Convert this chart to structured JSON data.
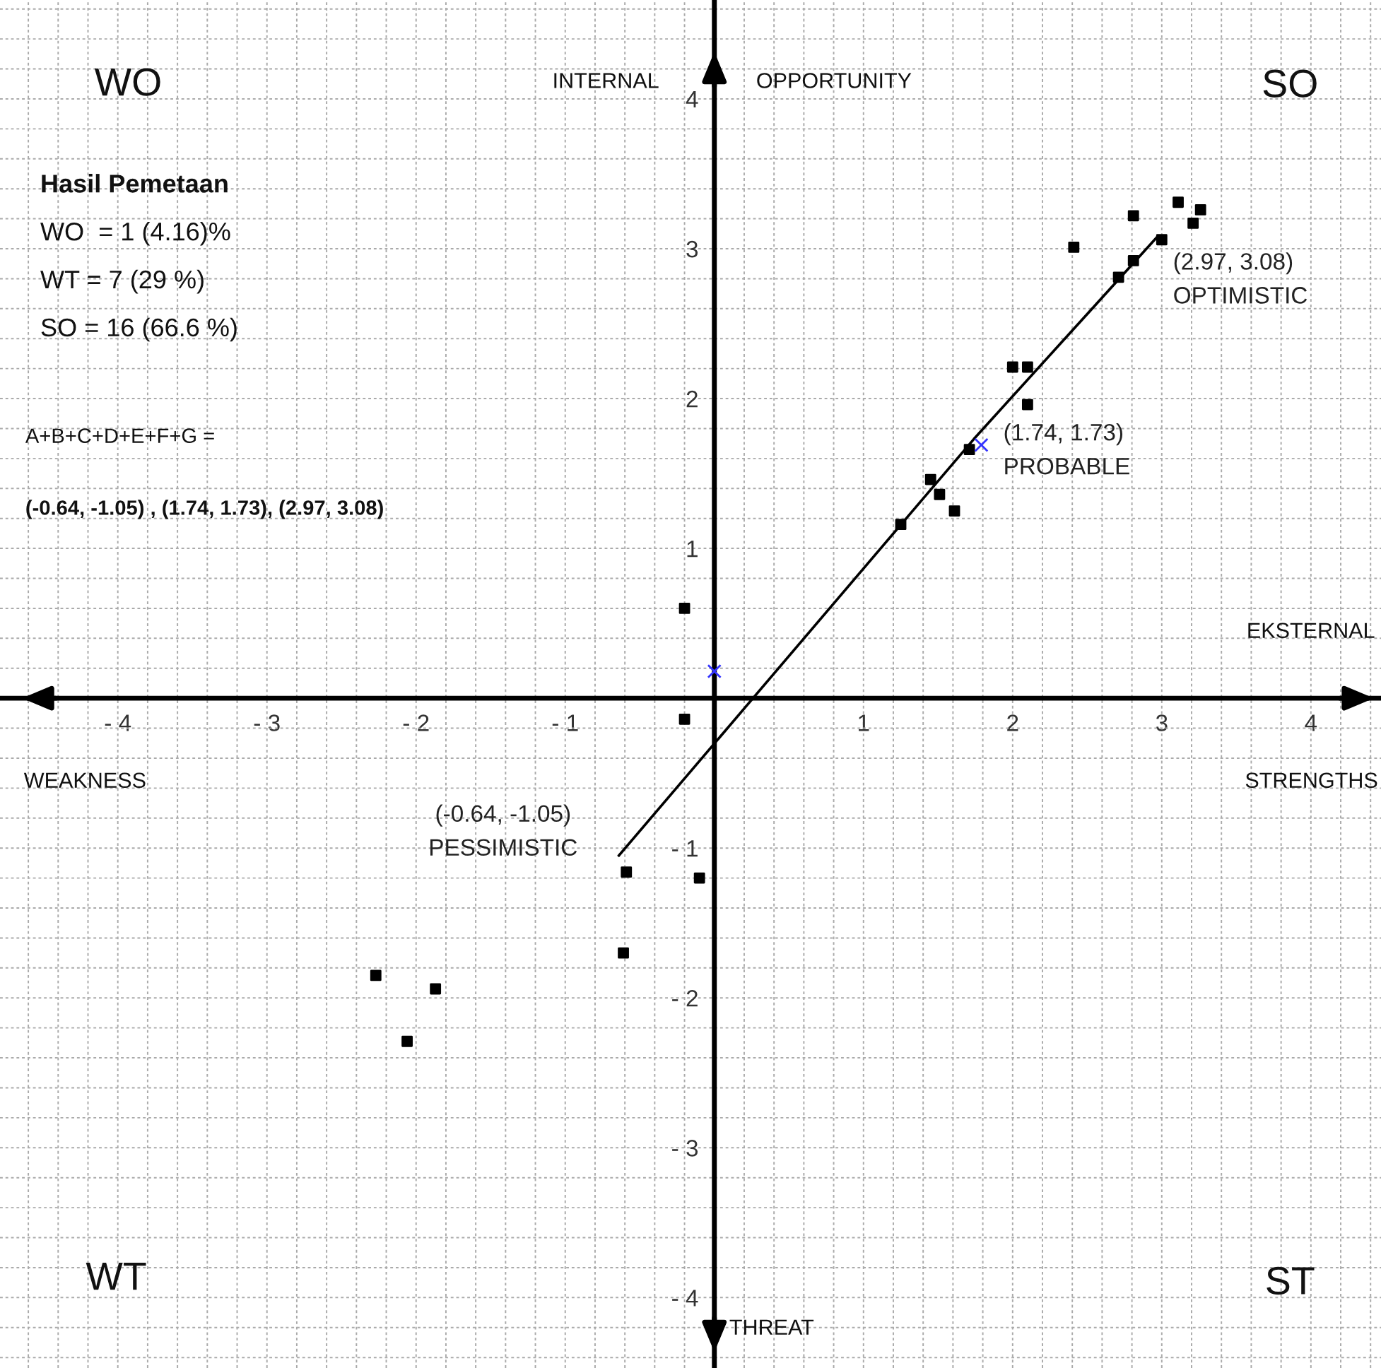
{
  "chart_data": {
    "type": "scatter",
    "xlim": [
      -4.79,
      4.47
    ],
    "ylim": [
      -4.47,
      4.66
    ],
    "xticks": [
      {
        "value": -4,
        "label": "- 4"
      },
      {
        "value": -3,
        "label": "- 3"
      },
      {
        "value": -2,
        "label": "- 2"
      },
      {
        "value": -1,
        "label": "- 1"
      },
      1,
      2,
      3,
      4
    ],
    "yticks": [
      {
        "value": -4,
        "label": "- 4"
      },
      {
        "value": -3,
        "label": "- 3"
      },
      {
        "value": -2,
        "label": "- 2"
      },
      {
        "value": -1,
        "label": "- 1"
      },
      1,
      2,
      3,
      4
    ],
    "grid": true,
    "legend": false,
    "series": [
      {
        "marker": "square",
        "color": "#000000",
        "x": [
          3.11,
          3.26,
          3.21,
          2.81,
          3.0,
          2.81,
          2.71,
          2.41,
          2.0,
          2.1,
          2.1,
          1.71,
          1.45,
          1.51,
          1.61,
          1.25,
          -0.2,
          -0.2,
          -0.59,
          -0.1,
          -0.61,
          -2.27,
          -1.87,
          -2.06
        ],
        "values": [
          3.31,
          3.26,
          3.17,
          3.22,
          3.06,
          2.92,
          2.81,
          3.01,
          2.21,
          2.21,
          1.96,
          1.66,
          1.46,
          1.36,
          1.25,
          1.16,
          0.6,
          -0.14,
          -1.16,
          -1.2,
          -1.7,
          -1.85,
          -1.94,
          -2.29
        ]
      },
      {
        "type": "line",
        "marker": "none",
        "line_style": "solid",
        "color": "#000000",
        "x": [
          -0.64,
          1.74,
          2.97
        ],
        "values": [
          -1.05,
          1.73,
          3.08
        ]
      },
      {
        "marker": "cross",
        "color": "#3333ff",
        "x": [
          0,
          1.79
        ],
        "values": [
          0.18,
          1.69
        ]
      }
    ],
    "annotations": [
      "WO",
      "SO",
      "WT",
      "ST",
      "INTERNAL",
      "OPPORTUNITY",
      "EKSTERNAL",
      "WEAKNESS",
      "STRENGTHS",
      "THREAT",
      "Hasil Pemetaan",
      "WO  = 1 (4.16)%",
      "WT = 7 (29 %)",
      "SO = 16 (66.6 %)",
      "A+B+C+D+E+F+G =",
      "(-0.64, -1.05) , (1.74, 1.73), (2.97, 3.08)",
      {
        "text": "(2.97, 3.08)\nOPTIMISTIC",
        "x": 2.97,
        "y": 3.08
      },
      {
        "text": "(1.74, 1.73)\nPROBABLE",
        "x": 1.74,
        "y": 1.73
      },
      {
        "text": "(-0.64, -1.05)\nPESSIMISTIC",
        "x": -0.64,
        "y": -1.05
      }
    ]
  }
}
